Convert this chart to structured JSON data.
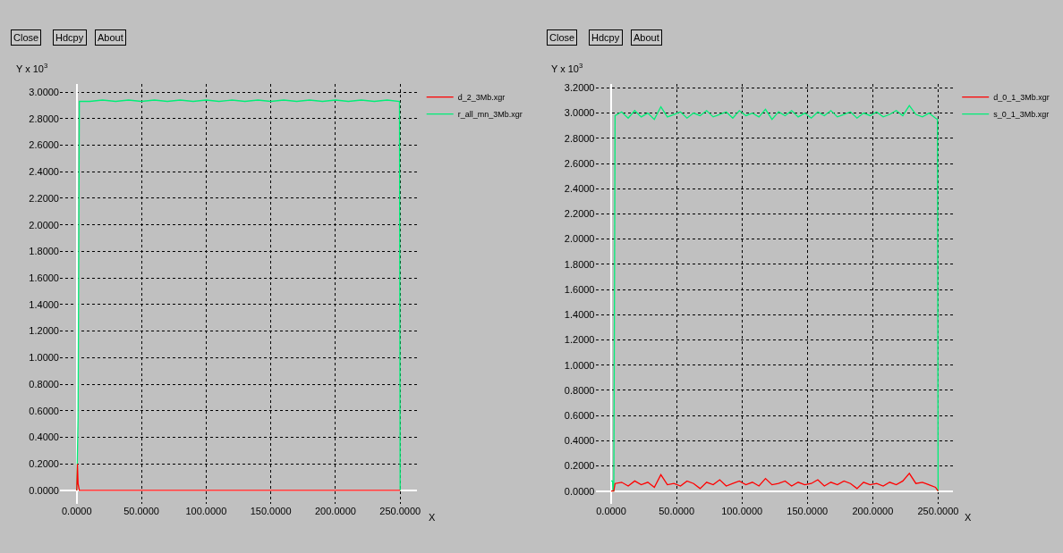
{
  "chart_data": [
    {
      "type": "line",
      "xlabel": "X",
      "ylabel": "Y x 10$^{3}$",
      "annotations": [
        "Close",
        "Hdcpy",
        "About"
      ],
      "xlim": [
        -13,
        263
      ],
      "ylim": [
        -0.1,
        3.06
      ],
      "xticks": [
        {
          "value": 0,
          "label": "0.0000"
        },
        {
          "value": 50,
          "label": "50.0000"
        },
        {
          "value": 100,
          "label": "100.0000"
        },
        {
          "value": 150,
          "label": "150.0000"
        },
        {
          "value": 200,
          "label": "200.0000"
        },
        {
          "value": 250,
          "label": "250.0000"
        }
      ],
      "yticks": [
        {
          "value": 0,
          "label": "0.0000"
        },
        {
          "value": 0.2,
          "label": "0.2000"
        },
        {
          "value": 0.4,
          "label": "0.4000"
        },
        {
          "value": 0.6,
          "label": "0.6000"
        },
        {
          "value": 0.8,
          "label": "0.8000"
        },
        {
          "value": 1.0,
          "label": "1.0000"
        },
        {
          "value": 1.2,
          "label": "1.2000"
        },
        {
          "value": 1.4,
          "label": "1.4000"
        },
        {
          "value": 1.6,
          "label": "1.6000"
        },
        {
          "value": 1.8,
          "label": "1.8000"
        },
        {
          "value": 2.0,
          "label": "2.0000"
        },
        {
          "value": 2.2,
          "label": "2.2000"
        },
        {
          "value": 2.4,
          "label": "2.4000"
        },
        {
          "value": 2.6,
          "label": "2.6000"
        },
        {
          "value": 2.8,
          "label": "2.8000"
        },
        {
          "value": 3.0,
          "label": "3.0000"
        }
      ],
      "grid": true,
      "legend": "top right",
      "series": [
        {
          "name": "d_2_3Mb.xgr",
          "color": "#ff0000",
          "x": [
            0,
            0.5,
            1,
            2,
            250
          ],
          "values": [
            0,
            0.2,
            0.05,
            0,
            0
          ]
        },
        {
          "name": "r_all_mn_3Mb.xgr",
          "color": "#00ee77",
          "x": [
            0,
            1,
            2,
            10,
            20,
            30,
            40,
            50,
            60,
            70,
            80,
            90,
            100,
            110,
            120,
            130,
            140,
            150,
            160,
            170,
            180,
            190,
            200,
            210,
            220,
            230,
            240,
            249.5,
            250
          ],
          "values": [
            0,
            0.55,
            2.93,
            2.93,
            2.94,
            2.93,
            2.94,
            2.93,
            2.94,
            2.93,
            2.94,
            2.93,
            2.94,
            2.93,
            2.94,
            2.93,
            2.94,
            2.93,
            2.94,
            2.93,
            2.94,
            2.93,
            2.94,
            2.93,
            2.94,
            2.93,
            2.94,
            2.93,
            0
          ]
        }
      ]
    },
    {
      "type": "line",
      "xlabel": "X",
      "ylabel": "Y x 10$^{3}$",
      "annotations": [
        "Close",
        "Hdcpy",
        "About"
      ],
      "xlim": [
        -12,
        261
      ],
      "ylim": [
        -0.1,
        3.23
      ],
      "xticks": [
        {
          "value": 0,
          "label": "0.0000"
        },
        {
          "value": 50,
          "label": "50.0000"
        },
        {
          "value": 100,
          "label": "100.0000"
        },
        {
          "value": 150,
          "label": "150.0000"
        },
        {
          "value": 200,
          "label": "200.0000"
        },
        {
          "value": 250,
          "label": "250.0000"
        }
      ],
      "yticks": [
        {
          "value": 0,
          "label": "0.0000"
        },
        {
          "value": 0.2,
          "label": "0.2000"
        },
        {
          "value": 0.4,
          "label": "0.4000"
        },
        {
          "value": 0.6,
          "label": "0.6000"
        },
        {
          "value": 0.8,
          "label": "0.8000"
        },
        {
          "value": 1.0,
          "label": "1.0000"
        },
        {
          "value": 1.2,
          "label": "1.2000"
        },
        {
          "value": 1.4,
          "label": "1.4000"
        },
        {
          "value": 1.6,
          "label": "1.6000"
        },
        {
          "value": 1.8,
          "label": "1.8000"
        },
        {
          "value": 2.0,
          "label": "2.0000"
        },
        {
          "value": 2.2,
          "label": "2.2000"
        },
        {
          "value": 2.4,
          "label": "2.4000"
        },
        {
          "value": 2.6,
          "label": "2.6000"
        },
        {
          "value": 2.8,
          "label": "2.8000"
        },
        {
          "value": 3.0,
          "label": "3.0000"
        },
        {
          "value": 3.2,
          "label": "3.2000"
        }
      ],
      "grid": true,
      "legend": "top right",
      "series": [
        {
          "name": "d_0_1_3Mb.xgr",
          "color": "#ff0000",
          "x": [
            0,
            2,
            3,
            8,
            13,
            18,
            23,
            28,
            33,
            38,
            43,
            48,
            53,
            58,
            63,
            68,
            73,
            78,
            83,
            88,
            93,
            98,
            103,
            108,
            113,
            118,
            123,
            128,
            133,
            138,
            143,
            148,
            153,
            158,
            163,
            168,
            173,
            178,
            183,
            188,
            193,
            198,
            203,
            208,
            213,
            218,
            223,
            228,
            233,
            238,
            243,
            248,
            250
          ],
          "values": [
            0,
            0,
            0.06,
            0.07,
            0.04,
            0.08,
            0.05,
            0.07,
            0.03,
            0.13,
            0.05,
            0.06,
            0.04,
            0.08,
            0.06,
            0.02,
            0.07,
            0.05,
            0.09,
            0.04,
            0.06,
            0.08,
            0.05,
            0.07,
            0.04,
            0.1,
            0.05,
            0.06,
            0.08,
            0.04,
            0.07,
            0.05,
            0.06,
            0.09,
            0.04,
            0.07,
            0.05,
            0.08,
            0.06,
            0.02,
            0.07,
            0.05,
            0.06,
            0.04,
            0.07,
            0.05,
            0.08,
            0.14,
            0.06,
            0.07,
            0.05,
            0.03,
            0
          ]
        },
        {
          "name": "s_0_1_3Mb.xgr",
          "color": "#00ee77",
          "x": [
            0,
            1,
            1.5,
            2,
            3,
            8,
            13,
            18,
            23,
            28,
            33,
            38,
            43,
            48,
            53,
            58,
            63,
            68,
            73,
            78,
            83,
            88,
            93,
            98,
            103,
            108,
            113,
            118,
            123,
            128,
            133,
            138,
            143,
            148,
            153,
            158,
            163,
            168,
            173,
            178,
            183,
            188,
            193,
            198,
            203,
            208,
            213,
            218,
            223,
            228,
            233,
            238,
            243,
            248,
            249.5,
            250
          ],
          "values": [
            0.08,
            0.08,
            0,
            0,
            2.98,
            3.01,
            2.96,
            3.02,
            2.97,
            3.0,
            2.95,
            3.05,
            2.97,
            2.99,
            3.01,
            2.96,
            3.0,
            2.98,
            3.02,
            2.97,
            2.99,
            3.01,
            2.96,
            3.02,
            2.98,
            3.0,
            2.97,
            3.03,
            2.95,
            3.01,
            2.98,
            3.02,
            2.97,
            3.0,
            2.96,
            3.01,
            2.98,
            3.02,
            2.97,
            2.99,
            3.01,
            2.96,
            3.0,
            2.98,
            3.01,
            2.97,
            2.99,
            3.02,
            2.98,
            3.06,
            2.99,
            2.97,
            3.0,
            2.96,
            2.95,
            0
          ]
        }
      ]
    }
  ]
}
